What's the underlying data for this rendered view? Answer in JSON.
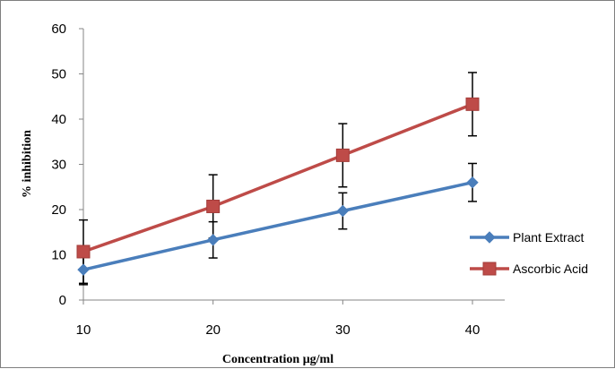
{
  "chart_data": {
    "type": "line",
    "x": [
      10,
      20,
      30,
      40
    ],
    "xlabel": "Concentration μg/ml",
    "ylabel": "% inhibition",
    "ylim": [
      0,
      60
    ],
    "yticks": [
      0,
      10,
      20,
      30,
      40,
      50,
      60
    ],
    "xticks": [
      10,
      20,
      30,
      40
    ],
    "grid": false,
    "legend": "right",
    "series": [
      {
        "name": "Plant Extract",
        "values": [
          6.7,
          13.3,
          19.7,
          26.0
        ],
        "error": [
          3.3,
          4.0,
          4.0,
          4.2
        ],
        "color": "#4a7ebb",
        "marker": "diamond"
      },
      {
        "name": "Ascorbic Acid",
        "values": [
          10.7,
          20.7,
          32.0,
          43.3
        ],
        "error": [
          7.0,
          7.0,
          7.0,
          7.0
        ],
        "color": "#be4b48",
        "marker": "square"
      }
    ]
  }
}
